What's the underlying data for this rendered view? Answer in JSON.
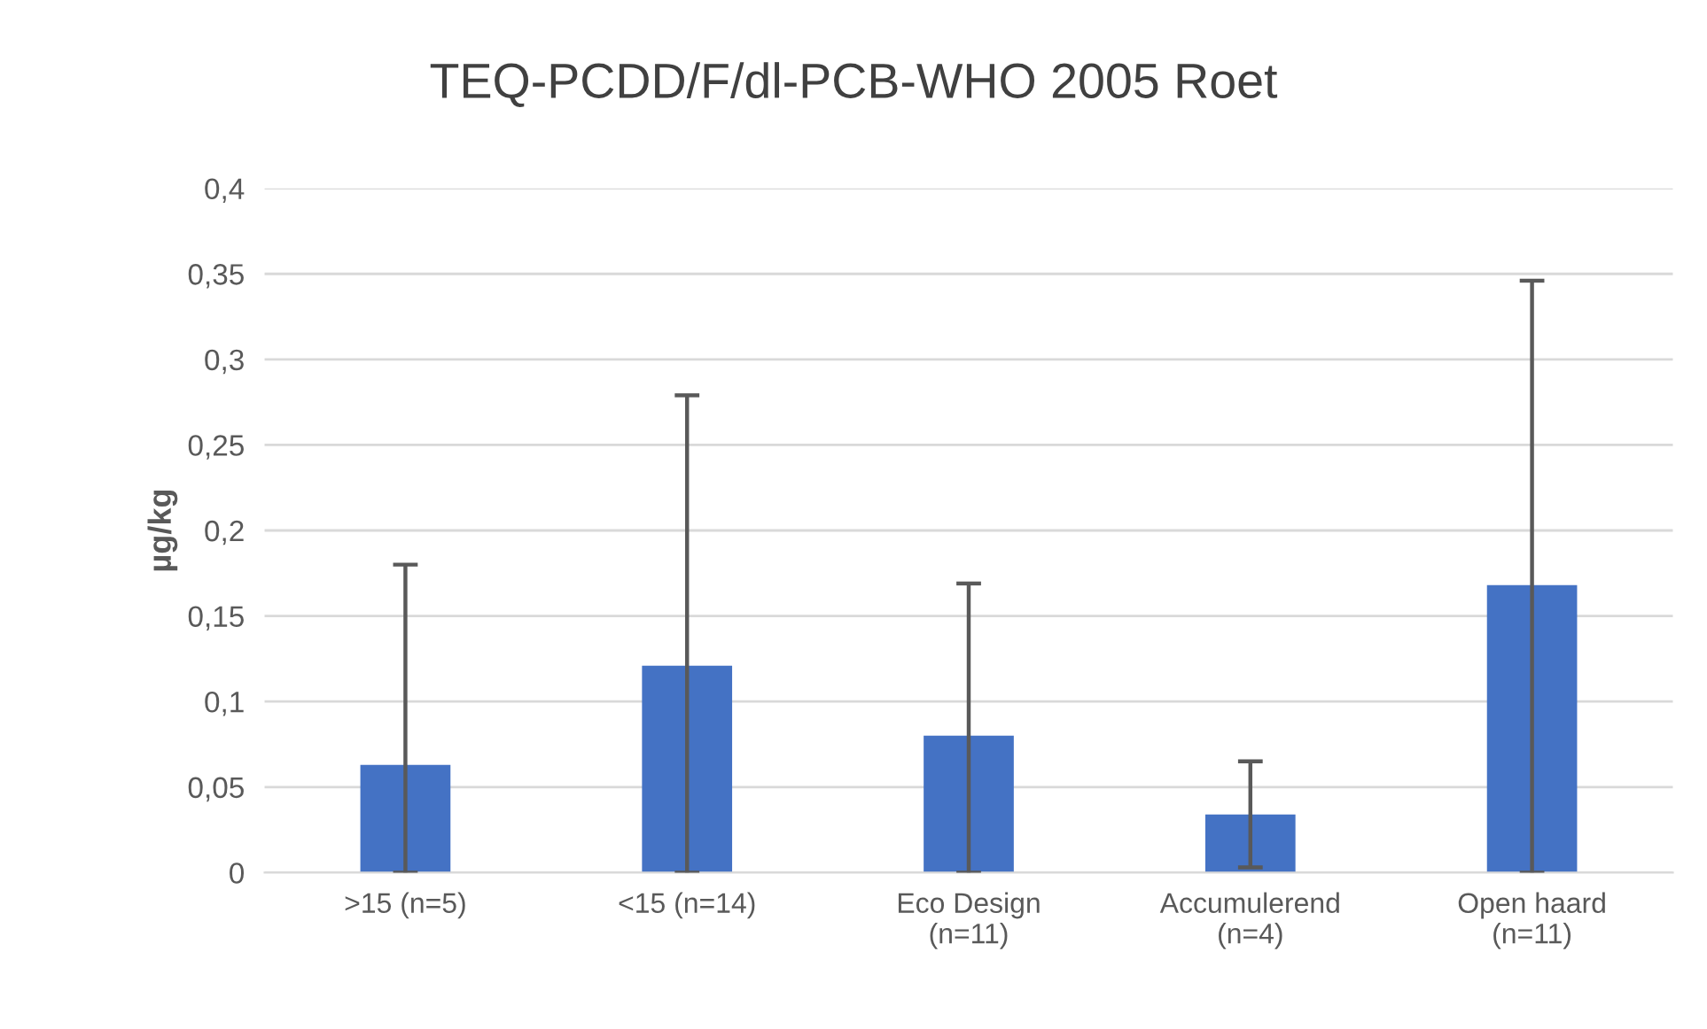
{
  "chart_data": {
    "type": "bar",
    "title": "TEQ-PCDD/F/dl-PCB-WHO 2005 Roet",
    "ylabel": "µg/kg",
    "categories": [
      ">15 (n=5)",
      "<15 (n=14)",
      "Eco Design\n(n=11)",
      "Accumulerend\n(n=4)",
      "Open haard\n(n=11)"
    ],
    "values": [
      0.063,
      0.121,
      0.08,
      0.034,
      0.168
    ],
    "errors": [
      [
        0,
        0.18
      ],
      [
        0,
        0.279
      ],
      [
        0,
        0.169
      ],
      [
        0.003,
        0.065
      ],
      [
        0,
        0.346
      ]
    ],
    "color": "#4472c4",
    "ylim": [
      0,
      0.4
    ],
    "yticks": [
      0,
      {
        "value": 0.05,
        "label": "0,05"
      },
      {
        "value": 0.1,
        "label": "0,1"
      },
      {
        "value": 0.15,
        "label": "0,15"
      },
      {
        "value": 0.2,
        "label": "0,2"
      },
      {
        "value": 0.25,
        "label": "0,25"
      },
      {
        "value": 0.3,
        "label": "0,3"
      },
      {
        "value": 0.35,
        "label": "0,35"
      },
      {
        "value": 0.4,
        "label": "0,4"
      }
    ],
    "grid": "y",
    "legend": false
  }
}
